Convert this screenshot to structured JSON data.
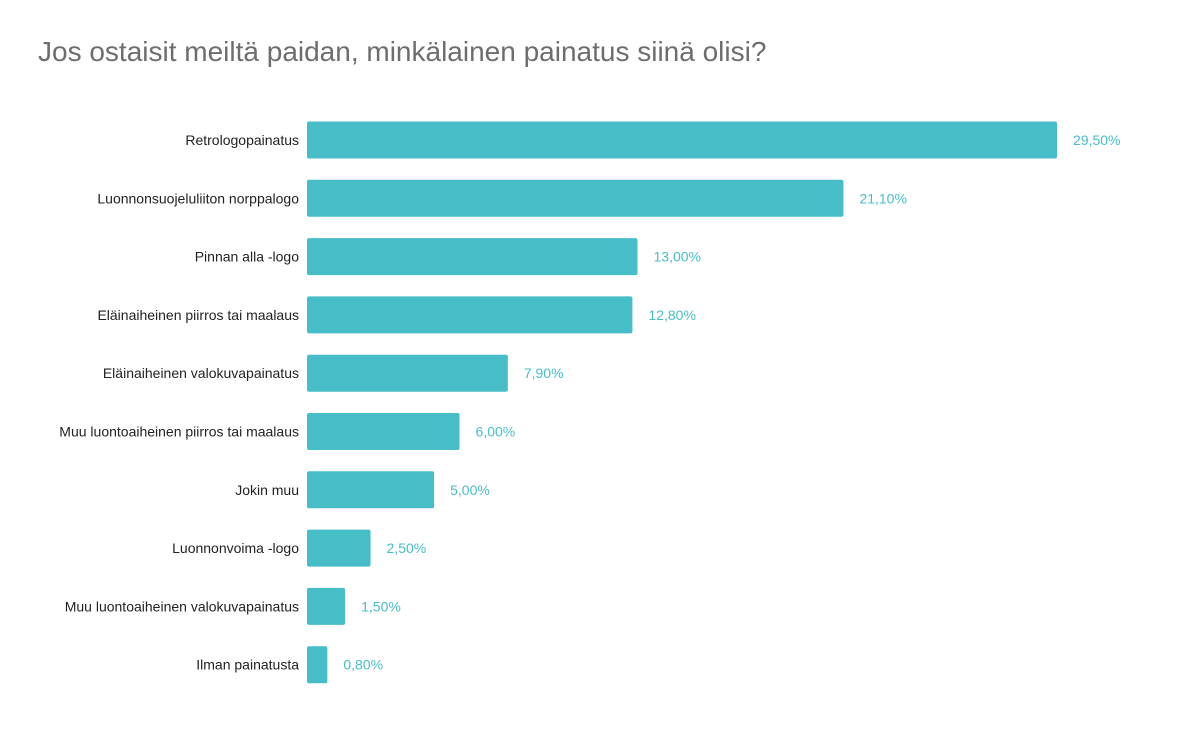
{
  "chart_data": {
    "type": "bar",
    "orientation": "horizontal",
    "title": "Jos ostaisit meiltä paidan, minkälainen painatus siinä olisi?",
    "xlabel": "",
    "ylabel": "",
    "categories": [
      "Retrologopainatus",
      "Luonnonsuojeluliiton norppalogo",
      "Pinnan alla -logo",
      "Eläinaiheinen piirros tai maalaus",
      "Eläinaiheinen valokuvapainatus",
      "Muu luontoaiheinen piirros tai maalaus",
      "Jokin muu",
      "Luonnonvoima -logo",
      "Muu luontoaiheinen valokuvapainatus",
      "Ilman painatusta"
    ],
    "values": [
      29.5,
      21.1,
      13.0,
      12.8,
      7.9,
      6.0,
      5.0,
      2.5,
      1.5,
      0.8
    ],
    "value_labels": [
      "29,50%",
      "21,10%",
      "13,00%",
      "12,80%",
      "7,90%",
      "6,00%",
      "5,00%",
      "2,50%",
      "1,50%",
      "0,80%"
    ],
    "xlim": [
      0,
      29.5
    ],
    "grid": false,
    "legend": "none",
    "bar_color": "#47bec7",
    "value_label_color": "#47bec7"
  }
}
